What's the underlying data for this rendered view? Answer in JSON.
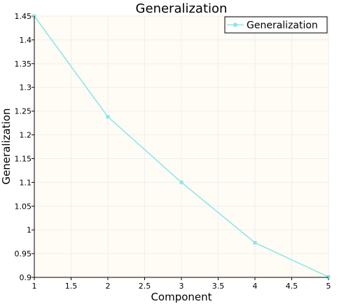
{
  "chart_data": {
    "type": "line",
    "title": "Generalization",
    "xlabel": "Component",
    "ylabel": "Generalization",
    "xlim": [
      1,
      5
    ],
    "ylim": [
      0.9,
      1.45
    ],
    "x_ticks": [
      "1",
      "1.5",
      "2",
      "2.5",
      "3",
      "3.5",
      "4",
      "4.5",
      "5"
    ],
    "y_ticks": [
      "0.9",
      "0.95",
      "1",
      "1.05",
      "1.1",
      "1.15",
      "1.2",
      "1.25",
      "1.3",
      "1.35",
      "1.4",
      "1.45"
    ],
    "grid": true,
    "legend_position": "top-right",
    "series": [
      {
        "name": "Generalization",
        "color": "#88e6e9",
        "x": [
          1,
          2,
          3,
          4,
          5
        ],
        "y": [
          1.45,
          1.238,
          1.1,
          0.973,
          0.901
        ]
      }
    ]
  },
  "colors": {
    "plot_background": "#fffcf5",
    "grid": "#eeeeee"
  }
}
